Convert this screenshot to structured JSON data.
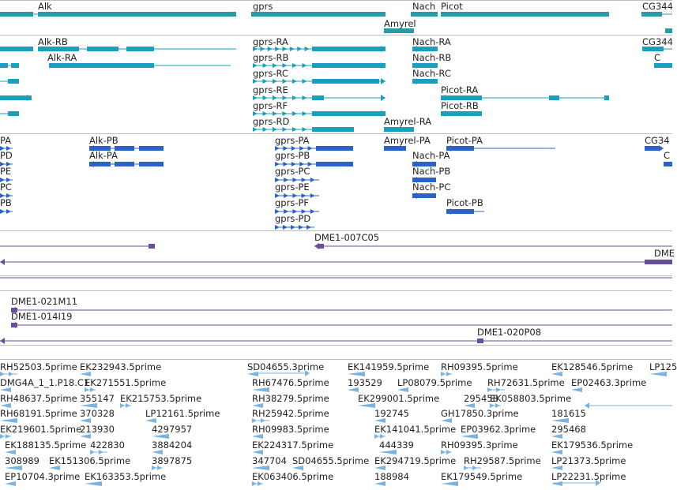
{
  "colors": {
    "gene": "#2a9aa6",
    "transcript": "#1b9fbe",
    "protein": "#2b62c8",
    "clone": "#6a4c9c",
    "est": "#7bb3e0",
    "separator": "#bfbfbf",
    "text": "#222222"
  },
  "tracks": {
    "genes": {
      "labels": [
        "Alk",
        "gprs",
        "Nach",
        "Picot",
        "CG344",
        "Amyrel"
      ]
    },
    "transcripts": {
      "labels": [
        "Alk-RB",
        "Alk-RA",
        "gprs-RA",
        "gprs-RB",
        "gprs-RC",
        "gprs-RE",
        "gprs-RF",
        "gprs-RD",
        "Nach-RA",
        "Nach-RB",
        "Nach-RC",
        "Picot-RA",
        "Picot-RB",
        "Amyrel-RA",
        "CG344",
        "C"
      ]
    },
    "proteins": {
      "labels": [
        "PA",
        "PD",
        "PE",
        "PC",
        "PB",
        "Alk-PB",
        "Alk-PA",
        "gprs-PA",
        "gprs-PB",
        "gprs-PC",
        "gprs-PE",
        "gprs-PF",
        "gprs-PD",
        "Amyrel-PA",
        "Nach-PA",
        "Nach-PB",
        "Nach-PC",
        "Picot-PA",
        "Picot-PB",
        "CG34",
        "C"
      ]
    },
    "clones": {
      "labels": [
        "DME1-007C05",
        "DME",
        "DME1-021M11",
        "DME1-014I19",
        "DME1-020P08"
      ]
    },
    "ests": {
      "labels": [
        "RH52503.5prime",
        "EK232943.5prime",
        "SD04655.3prime",
        "EK141959.5prime",
        "RH09395.5prime",
        "EK128546.5prime",
        "LP125",
        "DMG4A_1_1.P18.C1",
        "EK271551.5prime",
        "RH67476.5prime",
        "193529",
        "LP08079.5prime",
        "RH72631.5prime",
        "EP02463.3prime",
        "RH48637.5prime",
        "355147",
        "EK215753.5prime",
        "RH38279.5prime",
        "EK299001.5prime",
        "295458",
        "EK058803.5prime",
        "RH68191.5prime",
        "370328",
        "LP12161.5prime",
        "RH25942.5prime",
        "192745",
        "GH17850.3prime",
        "181615",
        "EK219601.5prime",
        "213930",
        "4297957",
        "RH09983.5prime",
        "EK141041.5prime",
        "EP03962.3prime",
        "295468",
        "EK188135.5prime",
        "422830",
        "3884204",
        "EK224317.5prime",
        "444339",
        "RH09395.3prime",
        "EK179536.5prime",
        "308989",
        "EK151306.5prime",
        "3897875",
        "347704",
        "SD04655.5prime",
        "EK294719.5prime",
        "RH29587.5prime",
        "LP21373.5prime",
        "EP10704.3prime",
        "EK163353.5prime",
        "EK063406.5prime",
        "188984",
        "EK179549.5prime",
        "LP22231.5prime"
      ]
    }
  }
}
